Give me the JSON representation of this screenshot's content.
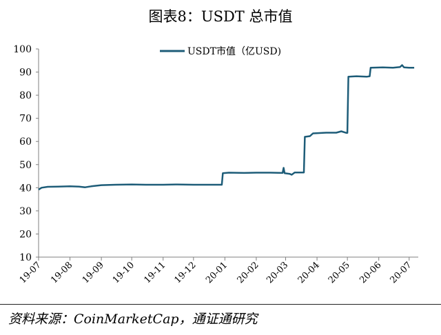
{
  "title": "图表8：USDT 总市值",
  "source": "资料来源：CoinMarketCap，通证通研究",
  "colors": {
    "line": "#1d5c78",
    "axis": "#7f7f7f",
    "text": "#000000"
  },
  "chart_data": {
    "type": "line",
    "title": "图表8：USDT 总市值",
    "xlabel": "",
    "ylabel": "",
    "ylim": [
      10,
      100
    ],
    "yticks": [
      10,
      20,
      30,
      40,
      50,
      60,
      70,
      80,
      90,
      100
    ],
    "xlim": [
      "2019-07-01",
      "2020-07-10"
    ],
    "xticks": [
      {
        "label": "19-07",
        "date": "2019-07-01"
      },
      {
        "label": "19-08",
        "date": "2019-08-01"
      },
      {
        "label": "19-09",
        "date": "2019-09-01"
      },
      {
        "label": "19-10",
        "date": "2019-10-01"
      },
      {
        "label": "19-11",
        "date": "2019-11-01"
      },
      {
        "label": "19-12",
        "date": "2019-12-01"
      },
      {
        "label": "20-01",
        "date": "2020-01-01"
      },
      {
        "label": "20-02",
        "date": "2020-02-01"
      },
      {
        "label": "20-03",
        "date": "2020-03-01"
      },
      {
        "label": "20-04",
        "date": "2020-04-01"
      },
      {
        "label": "20-05",
        "date": "2020-05-01"
      },
      {
        "label": "20-06",
        "date": "2020-06-01"
      },
      {
        "label": "20-07",
        "date": "2020-07-01"
      }
    ],
    "legend": {
      "position": "top-center"
    },
    "series": [
      {
        "name": "USDT市值（亿USD)",
        "points": [
          [
            "2019-07-01",
            39.2
          ],
          [
            "2019-07-04",
            40.0
          ],
          [
            "2019-07-10",
            40.4
          ],
          [
            "2019-07-20",
            40.5
          ],
          [
            "2019-08-01",
            40.6
          ],
          [
            "2019-08-10",
            40.5
          ],
          [
            "2019-08-16",
            40.2
          ],
          [
            "2019-08-22",
            40.6
          ],
          [
            "2019-09-01",
            41.1
          ],
          [
            "2019-09-15",
            41.3
          ],
          [
            "2019-10-01",
            41.4
          ],
          [
            "2019-10-15",
            41.3
          ],
          [
            "2019-11-01",
            41.3
          ],
          [
            "2019-11-15",
            41.4
          ],
          [
            "2019-12-01",
            41.3
          ],
          [
            "2019-12-20",
            41.3
          ],
          [
            "2019-12-29",
            41.3
          ],
          [
            "2019-12-30",
            46.3
          ],
          [
            "2020-01-05",
            46.5
          ],
          [
            "2020-01-20",
            46.4
          ],
          [
            "2020-02-01",
            46.5
          ],
          [
            "2020-02-15",
            46.5
          ],
          [
            "2020-02-27",
            46.4
          ],
          [
            "2020-02-28",
            48.6
          ],
          [
            "2020-02-29",
            46.3
          ],
          [
            "2020-03-05",
            46.0
          ],
          [
            "2020-03-07",
            45.6
          ],
          [
            "2020-03-10",
            46.6
          ],
          [
            "2020-03-19",
            46.6
          ],
          [
            "2020-03-20",
            62.0
          ],
          [
            "2020-03-25",
            62.3
          ],
          [
            "2020-03-28",
            63.5
          ],
          [
            "2020-04-10",
            63.8
          ],
          [
            "2020-04-20",
            63.8
          ],
          [
            "2020-04-25",
            64.4
          ],
          [
            "2020-04-30",
            63.7
          ],
          [
            "2020-05-01",
            63.7
          ],
          [
            "2020-05-02",
            88.0
          ],
          [
            "2020-05-10",
            88.2
          ],
          [
            "2020-05-20",
            88.0
          ],
          [
            "2020-05-23",
            88.2
          ],
          [
            "2020-05-24",
            91.9
          ],
          [
            "2020-06-05",
            92.0
          ],
          [
            "2020-06-15",
            91.9
          ],
          [
            "2020-06-22",
            92.2
          ],
          [
            "2020-06-24",
            93.0
          ],
          [
            "2020-06-26",
            92.0
          ],
          [
            "2020-07-01",
            91.9
          ],
          [
            "2020-07-06",
            91.9
          ]
        ]
      }
    ]
  }
}
